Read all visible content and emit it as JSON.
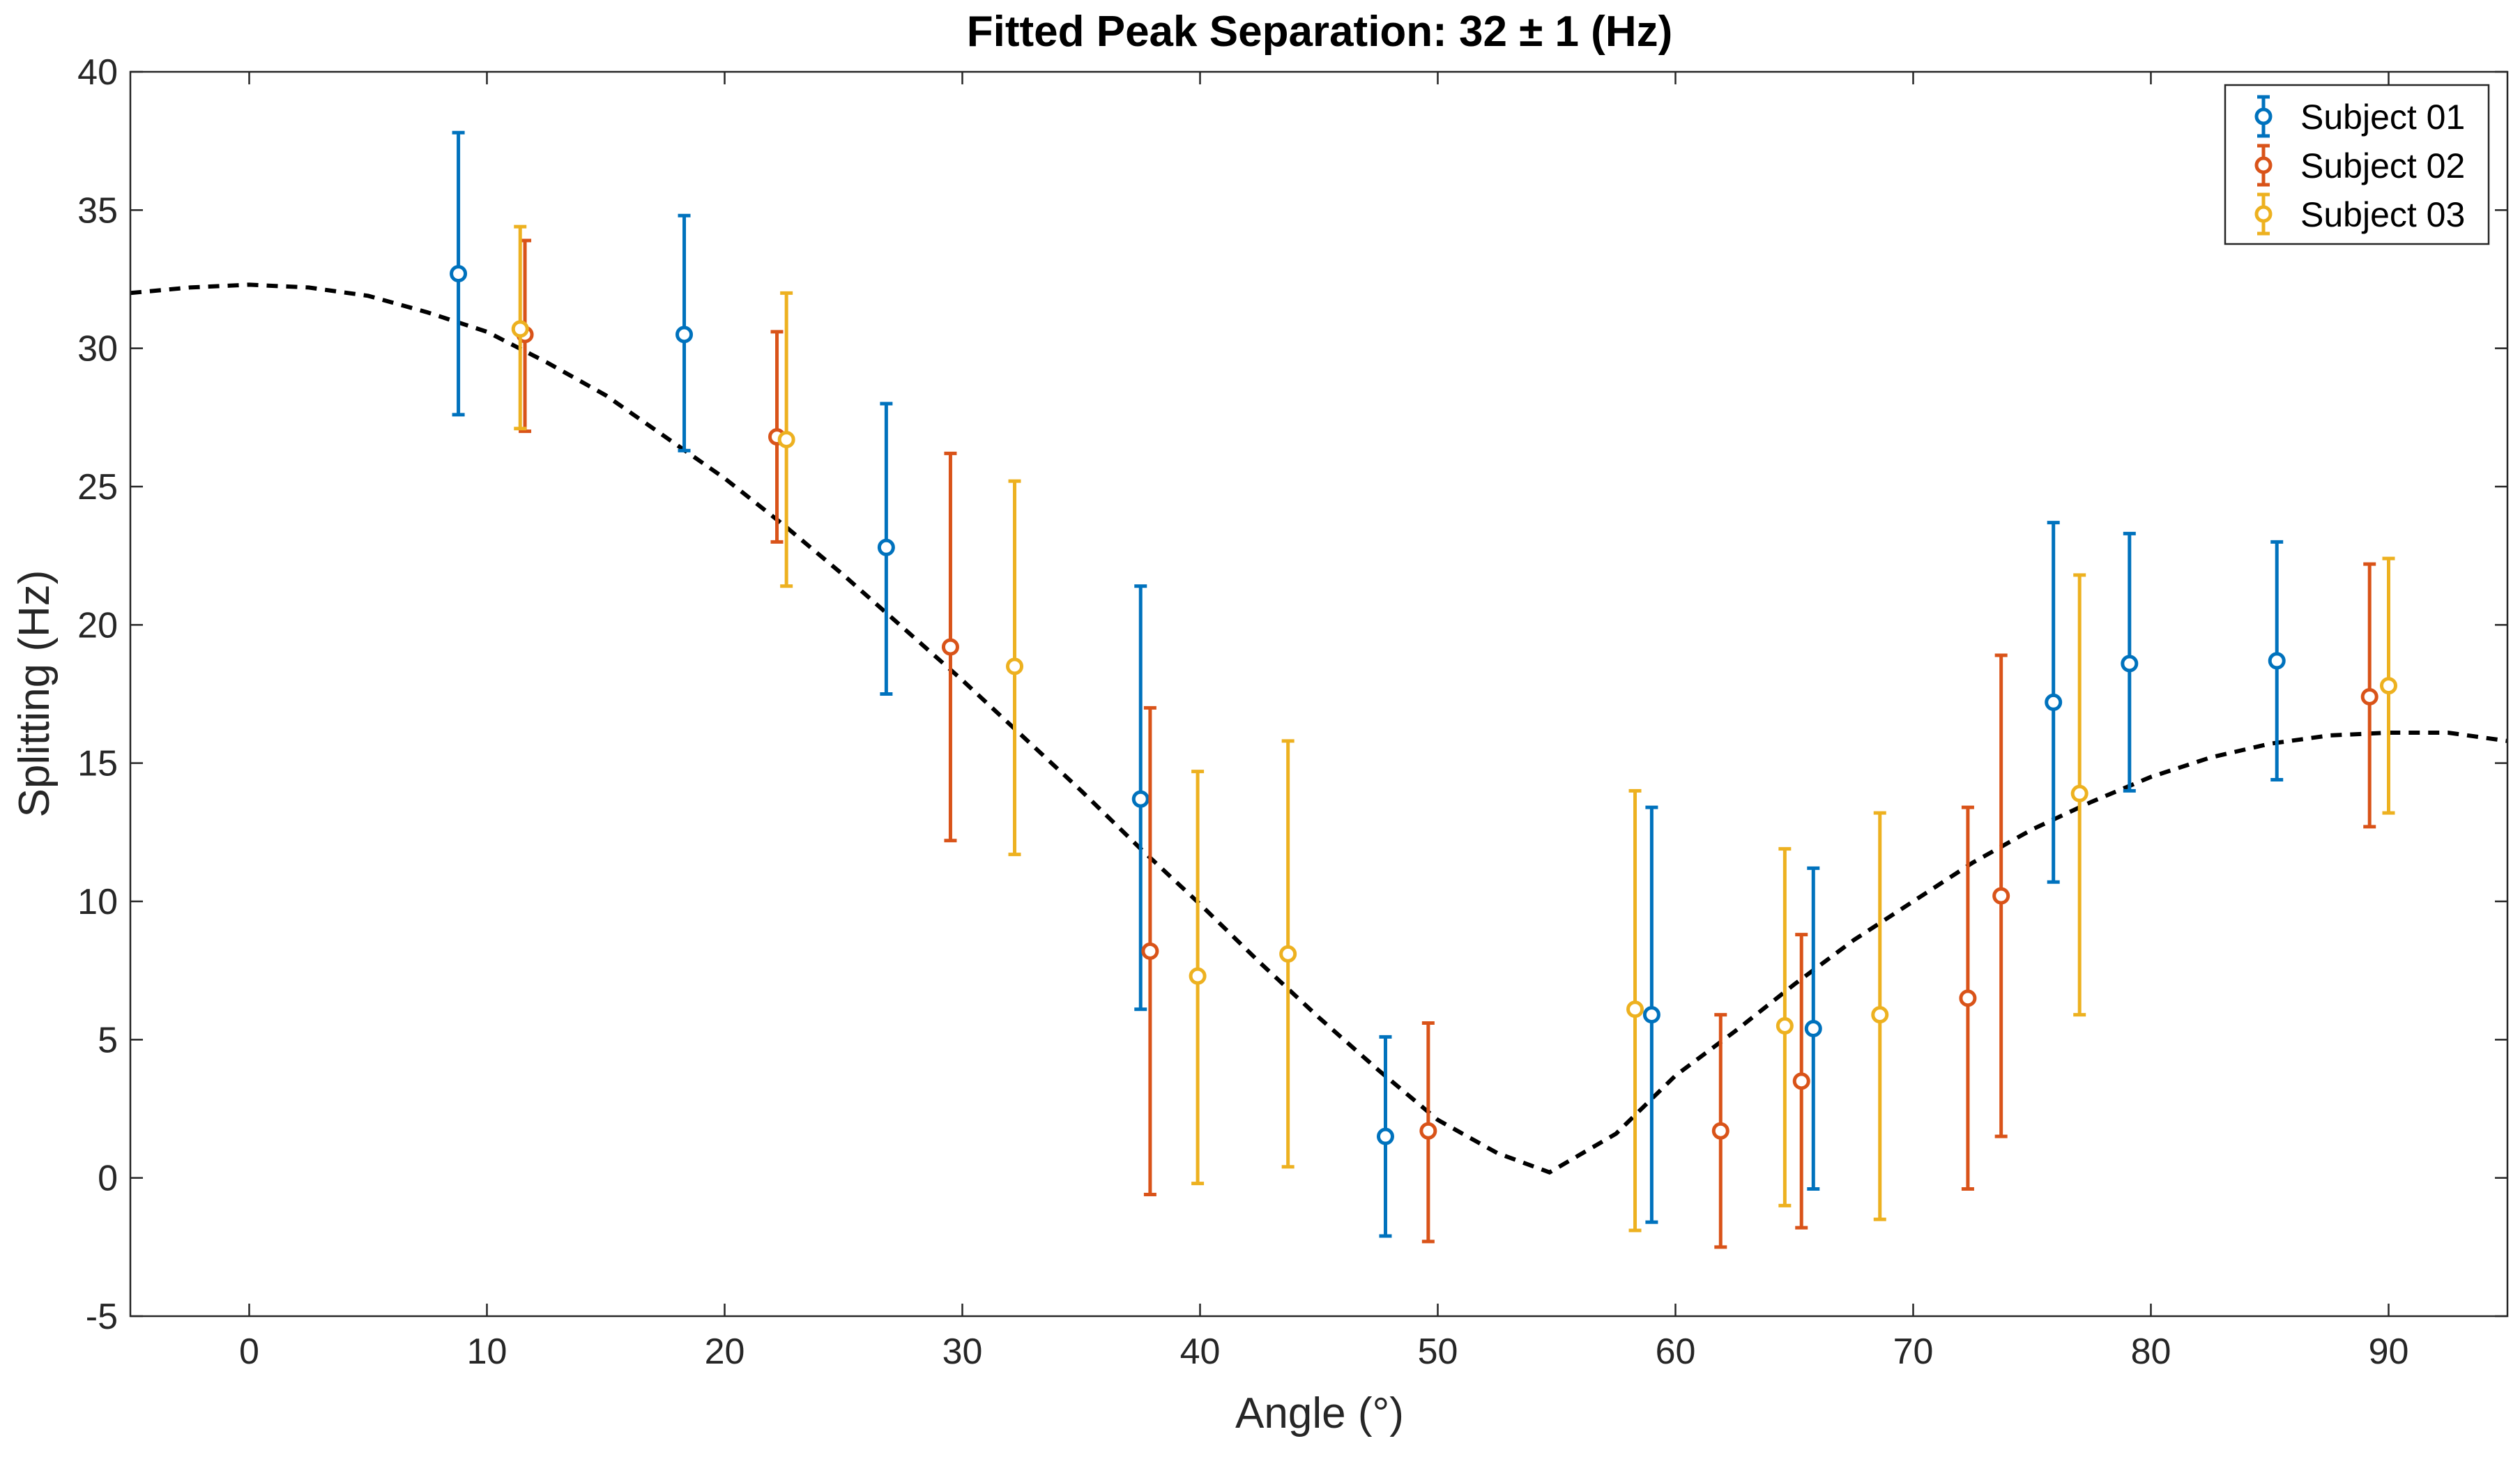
{
  "chart_data": {
    "type": "scatter",
    "title": "Fitted Peak Separation: 32 ± 1 (Hz)",
    "xlabel": "Angle (°)",
    "ylabel": "Splitting (Hz)",
    "xlim": [
      -5,
      95
    ],
    "ylim": [
      -5,
      40
    ],
    "xticks": [
      0,
      10,
      20,
      30,
      40,
      50,
      60,
      70,
      80,
      90
    ],
    "yticks": [
      -5,
      0,
      5,
      10,
      15,
      20,
      25,
      30,
      35,
      40
    ],
    "grid": false,
    "legend_position": "top-right",
    "series": [
      {
        "name": "Subject 01",
        "color": "#0072BD",
        "marker": "circle",
        "points": [
          {
            "x": 8.8,
            "y": 32.7,
            "low": 27.6,
            "high": 37.8
          },
          {
            "x": 18.3,
            "y": 30.5,
            "low": 26.3,
            "high": 34.8
          },
          {
            "x": 26.8,
            "y": 22.8,
            "low": 17.5,
            "high": 28.0
          },
          {
            "x": 37.5,
            "y": 13.7,
            "low": 6.1,
            "high": 21.4
          },
          {
            "x": 47.8,
            "y": 1.5,
            "low": -2.1,
            "high": 5.1
          },
          {
            "x": 59.0,
            "y": 5.9,
            "low": -1.6,
            "high": 13.4
          },
          {
            "x": 65.8,
            "y": 5.4,
            "low": -0.4,
            "high": 11.2
          },
          {
            "x": 75.9,
            "y": 17.2,
            "low": 10.7,
            "high": 23.7
          },
          {
            "x": 79.1,
            "y": 18.6,
            "low": 14.0,
            "high": 23.3
          },
          {
            "x": 85.3,
            "y": 18.7,
            "low": 14.4,
            "high": 23.0
          }
        ]
      },
      {
        "name": "Subject 02",
        "color": "#D95319",
        "marker": "circle",
        "points": [
          {
            "x": 11.6,
            "y": 30.5,
            "low": 27.0,
            "high": 33.9
          },
          {
            "x": 22.2,
            "y": 26.8,
            "low": 23.0,
            "high": 30.6
          },
          {
            "x": 29.5,
            "y": 19.2,
            "low": 12.2,
            "high": 26.2
          },
          {
            "x": 37.9,
            "y": 8.2,
            "low": -0.6,
            "high": 17.0
          },
          {
            "x": 49.6,
            "y": 1.7,
            "low": -2.3,
            "high": 5.6
          },
          {
            "x": 61.9,
            "y": 1.7,
            "low": -2.5,
            "high": 5.9
          },
          {
            "x": 65.3,
            "y": 3.5,
            "low": -1.8,
            "high": 8.8
          },
          {
            "x": 72.3,
            "y": 6.5,
            "low": -0.4,
            "high": 13.4
          },
          {
            "x": 73.7,
            "y": 10.2,
            "low": 1.5,
            "high": 18.9
          },
          {
            "x": 89.2,
            "y": 17.4,
            "low": 12.7,
            "high": 22.2
          }
        ]
      },
      {
        "name": "Subject 03",
        "color": "#EDB120",
        "marker": "circle",
        "points": [
          {
            "x": 11.4,
            "y": 30.7,
            "low": 27.1,
            "high": 34.4
          },
          {
            "x": 22.6,
            "y": 26.7,
            "low": 21.4,
            "high": 32.0
          },
          {
            "x": 32.2,
            "y": 18.5,
            "low": 11.7,
            "high": 25.2
          },
          {
            "x": 39.9,
            "y": 7.3,
            "low": -0.2,
            "high": 14.7
          },
          {
            "x": 43.7,
            "y": 8.1,
            "low": 0.4,
            "high": 15.8
          },
          {
            "x": 58.3,
            "y": 6.1,
            "low": -1.9,
            "high": 14.0
          },
          {
            "x": 64.6,
            "y": 5.5,
            "low": -1.0,
            "high": 11.9
          },
          {
            "x": 68.6,
            "y": 5.9,
            "low": -1.5,
            "high": 13.2
          },
          {
            "x": 77.0,
            "y": 13.9,
            "low": 5.9,
            "high": 21.8
          },
          {
            "x": 90.0,
            "y": 17.8,
            "low": 13.2,
            "high": 22.4
          }
        ]
      }
    ],
    "fit": {
      "style": "dashed",
      "color": "#000000",
      "x": [
        -5,
        -2.5,
        0,
        2.5,
        5,
        7.5,
        10,
        12.5,
        15,
        17.5,
        20,
        22.5,
        25,
        27.5,
        30,
        32.5,
        35,
        37.5,
        40,
        42.5,
        45,
        47.5,
        50,
        52.5,
        54.7,
        57.5,
        60,
        62.5,
        65,
        67.5,
        70,
        72.5,
        75,
        77.5,
        80,
        82.5,
        85,
        87.5,
        90,
        92.5,
        95
      ],
      "y": [
        32.0,
        32.2,
        32.3,
        32.2,
        31.9,
        31.3,
        30.6,
        29.5,
        28.3,
        26.8,
        25.3,
        23.6,
        21.8,
        19.9,
        18.0,
        16.0,
        14.0,
        11.9,
        9.9,
        7.8,
        5.8,
        3.9,
        2.1,
        0.9,
        0.2,
        1.6,
        3.7,
        5.3,
        7.0,
        8.6,
        10.0,
        11.4,
        12.6,
        13.6,
        14.5,
        15.2,
        15.7,
        16.0,
        16.1,
        16.1,
        15.8
      ]
    }
  }
}
